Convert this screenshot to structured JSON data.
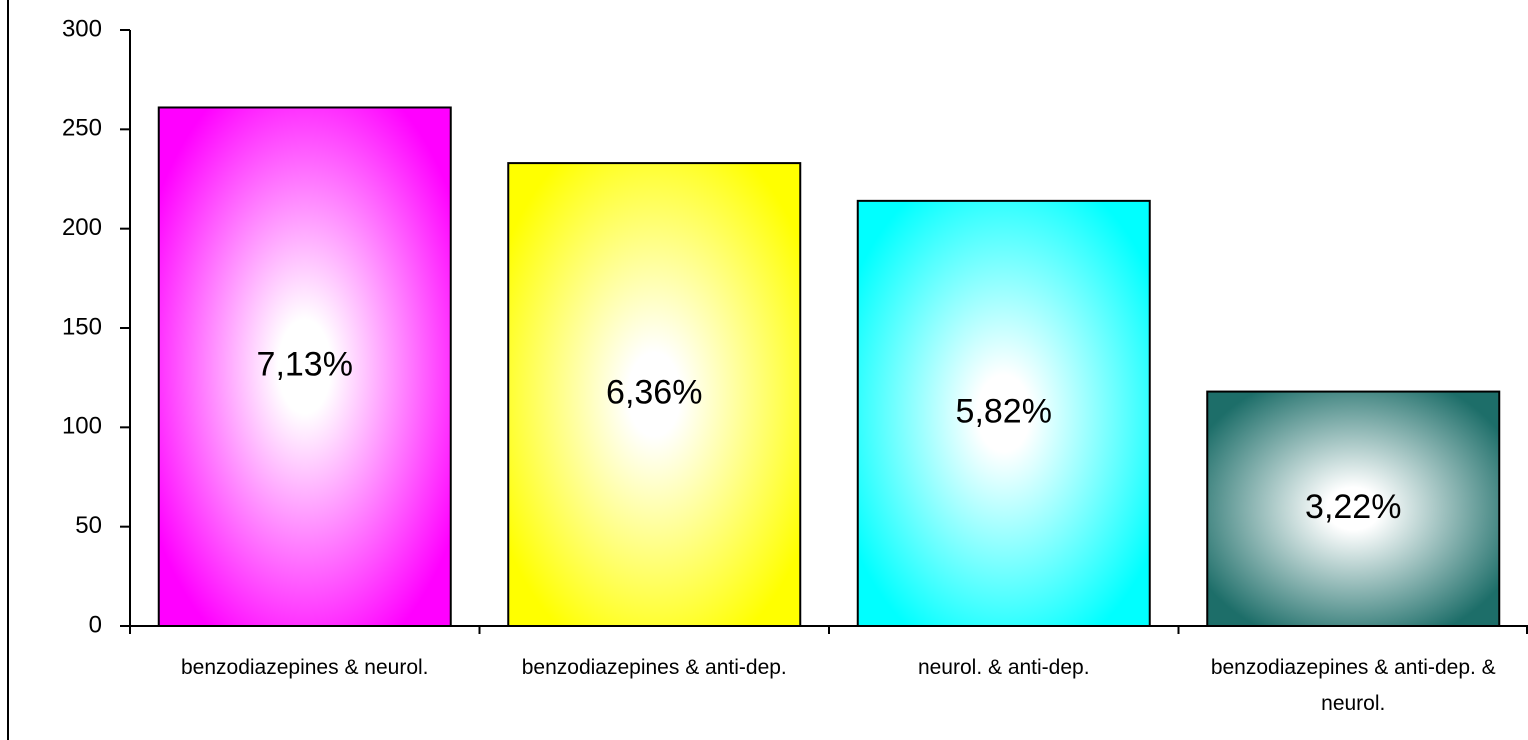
{
  "chart_data": {
    "type": "bar",
    "categories": [
      "benzodiazepines & neurol.",
      "benzodiazepines & anti-dep.",
      "neurol. & anti-dep.",
      "benzodiazepines & anti-dep. & neurol."
    ],
    "values": [
      261,
      233,
      214,
      118
    ],
    "annotations": [
      "7,13%",
      "6,36%",
      "5,82%",
      "3,22%"
    ],
    "colors": [
      "#ff00ff",
      "#ffff00",
      "#00ffff",
      "#1d6e69"
    ],
    "ylim": [
      0,
      300
    ],
    "yticks": [
      0,
      50,
      100,
      150,
      200,
      250,
      300
    ],
    "grid": false
  }
}
